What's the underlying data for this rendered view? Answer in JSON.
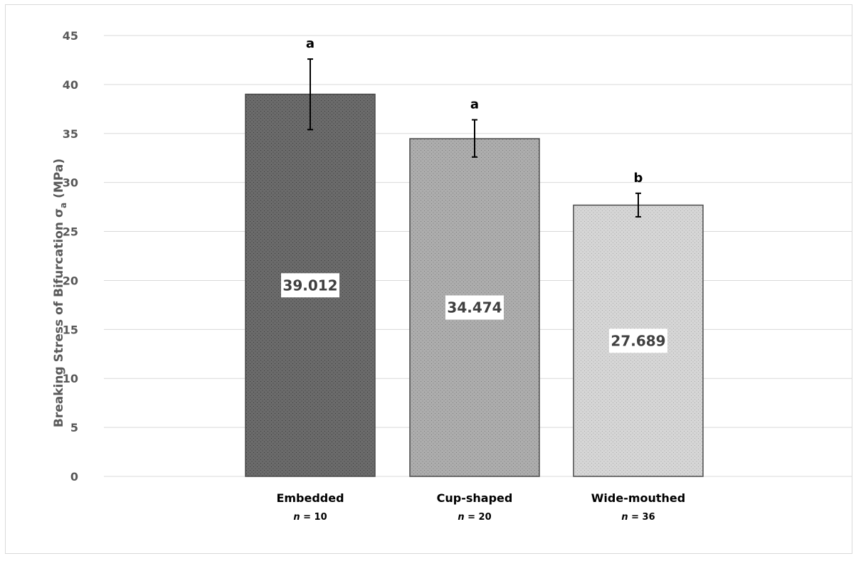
{
  "chart_data": {
    "type": "bar",
    "categories": [
      "Embedded",
      "Cup-shaped",
      "Wide-mouthed"
    ],
    "sample_sizes": [
      "n = 10",
      "n = 20",
      "n = 36"
    ],
    "values": [
      39.012,
      34.474,
      27.689
    ],
    "data_labels": [
      "39.012",
      "34.474",
      "27.689"
    ],
    "error_upper": [
      42.6,
      36.4,
      28.9
    ],
    "error_lower": [
      35.4,
      32.6,
      26.5
    ],
    "significance_letters": [
      "a",
      "a",
      "b"
    ],
    "title": "",
    "xlabel": "",
    "ylabel": "Breaking Stress of Bifurcation σa (MPa)",
    "ylabel_main": "Breaking Stress of Bifurcation σ",
    "ylabel_subscript": "a",
    "ylabel_unit": " (MPa)",
    "ylim": [
      0,
      45
    ],
    "yticks": [
      0,
      5,
      10,
      15,
      20,
      25,
      30,
      35,
      40,
      45
    ],
    "grid": true,
    "legend": "none",
    "bar_colors": [
      "#6b6b6b",
      "#adadad",
      "#d6d6d6"
    ],
    "dot_colors": [
      "#3a3a3a",
      "#7c7c7c",
      "#a8a8a8"
    ],
    "bar_edge_color": "#4a4a4a",
    "grid_color": "#d9d9d9"
  }
}
